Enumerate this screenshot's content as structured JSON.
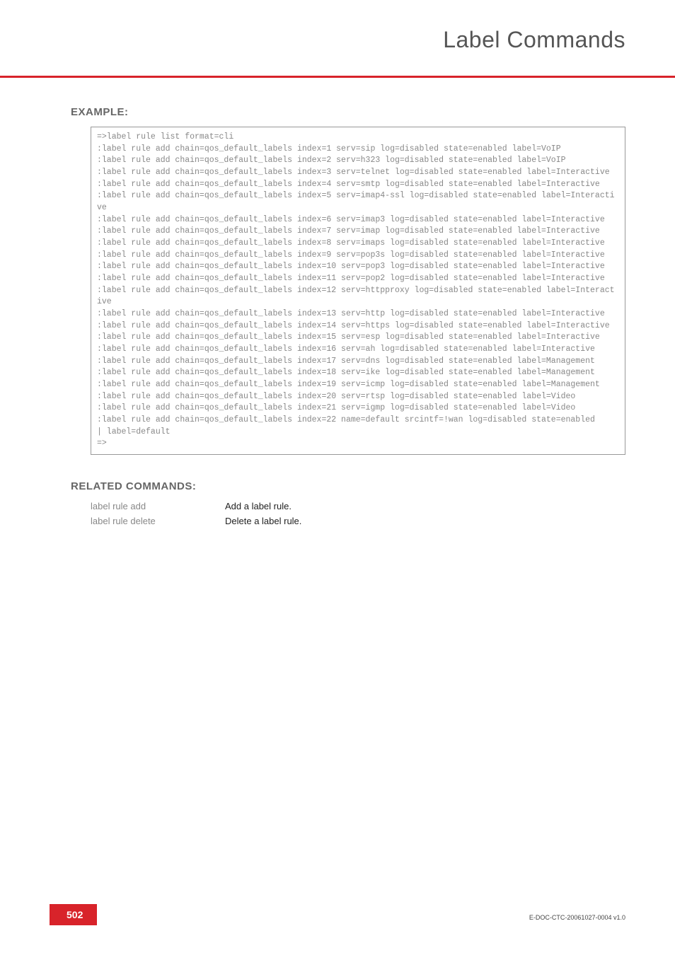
{
  "header": {
    "title": "Label Commands"
  },
  "sections": {
    "example_heading": "EXAMPLE:",
    "related_heading": "RELATED COMMANDS:"
  },
  "code": "=>label rule list format=cli\n:label rule add chain=qos_default_labels index=1 serv=sip log=disabled state=enabled label=VoIP\n:label rule add chain=qos_default_labels index=2 serv=h323 log=disabled state=enabled label=VoIP\n:label rule add chain=qos_default_labels index=3 serv=telnet log=disabled state=enabled label=Interactive\n:label rule add chain=qos_default_labels index=4 serv=smtp log=disabled state=enabled label=Interactive\n:label rule add chain=qos_default_labels index=5 serv=imap4-ssl log=disabled state=enabled label=Interactive\n:label rule add chain=qos_default_labels index=6 serv=imap3 log=disabled state=enabled label=Interactive\n:label rule add chain=qos_default_labels index=7 serv=imap log=disabled state=enabled label=Interactive\n:label rule add chain=qos_default_labels index=8 serv=imaps log=disabled state=enabled label=Interactive\n:label rule add chain=qos_default_labels index=9 serv=pop3s log=disabled state=enabled label=Interactive\n:label rule add chain=qos_default_labels index=10 serv=pop3 log=disabled state=enabled label=Interactive\n:label rule add chain=qos_default_labels index=11 serv=pop2 log=disabled state=enabled label=Interactive\n:label rule add chain=qos_default_labels index=12 serv=httpproxy log=disabled state=enabled label=Interactive\n:label rule add chain=qos_default_labels index=13 serv=http log=disabled state=enabled label=Interactive\n:label rule add chain=qos_default_labels index=14 serv=https log=disabled state=enabled label=Interactive\n:label rule add chain=qos_default_labels index=15 serv=esp log=disabled state=enabled label=Interactive\n:label rule add chain=qos_default_labels index=16 serv=ah log=disabled state=enabled label=Interactive\n:label rule add chain=qos_default_labels index=17 serv=dns log=disabled state=enabled label=Management\n:label rule add chain=qos_default_labels index=18 serv=ike log=disabled state=enabled label=Management\n:label rule add chain=qos_default_labels index=19 serv=icmp log=disabled state=enabled label=Management\n:label rule add chain=qos_default_labels index=20 serv=rtsp log=disabled state=enabled label=Video\n:label rule add chain=qos_default_labels index=21 serv=igmp log=disabled state=enabled label=Video\n:label rule add chain=qos_default_labels index=22 name=default srcintf=!wan log=disabled state=enabled\n| label=default\n=>",
  "related": [
    {
      "cmd": "label rule add",
      "desc": "Add a label rule."
    },
    {
      "cmd": "label rule delete",
      "desc": "Delete a label rule."
    }
  ],
  "footer": {
    "page": "502",
    "docid": "E-DOC-CTC-20061027-0004 v1.0"
  },
  "colors": {
    "accent": "#d8232a",
    "heading_text": "#666666",
    "code_text": "#888888",
    "muted_text": "#888888",
    "body_text": "#222222",
    "header_text": "#555555"
  }
}
